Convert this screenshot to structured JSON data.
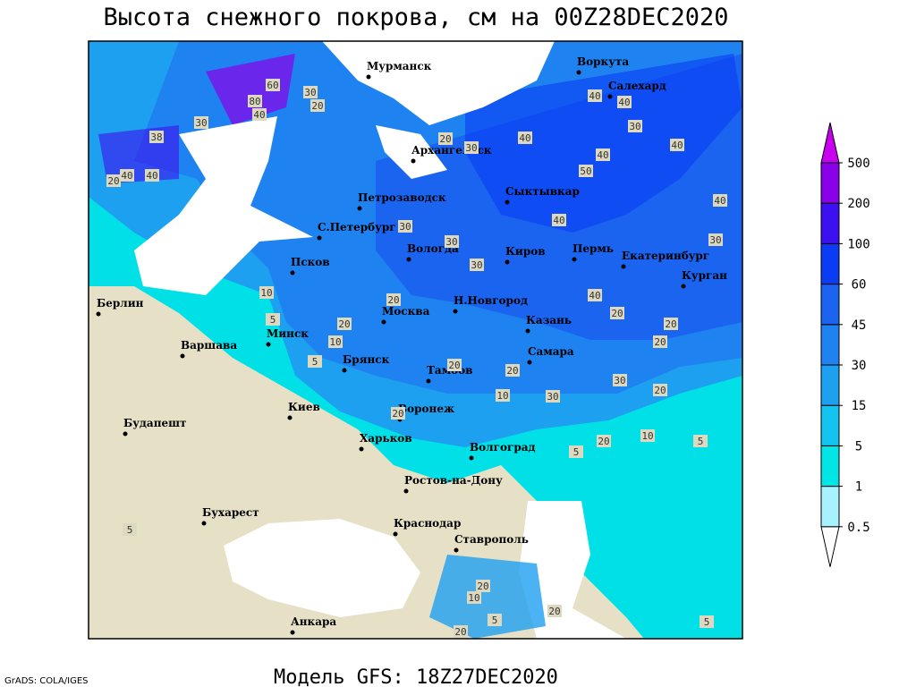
{
  "title": "Высота снежного покрова, см на 00Z28DEC2020",
  "footer": {
    "model": "Модель GFS: 18Z27DEC2020",
    "credit": "GrADS: COLA/IGES"
  },
  "cities": [
    "Мурманск",
    "Воркута",
    "Салехард",
    "Архангельск",
    "Петрозаводск",
    "Сыктывкар",
    "С.Петербург",
    "Вологда",
    "Киров",
    "Пермь",
    "Екатеринбург",
    "Курган",
    "Псков",
    "Берлин",
    "Н.Новгород",
    "Москва",
    "Казань",
    "Минск",
    "Варшава",
    "Самара",
    "Брянск",
    "Тамбов",
    "Киев",
    "Воронеж",
    "Будапешт",
    "Харьков",
    "Волгоград",
    "Ростов-на-Дону",
    "Бухарест",
    "Краснодар",
    "Ставрополь",
    "Анкара"
  ],
  "contour_labels": [
    "60",
    "80",
    "40",
    "30",
    "20",
    "30",
    "38",
    "20",
    "40",
    "40",
    "20",
    "30",
    "40",
    "40",
    "40",
    "30",
    "40",
    "40",
    "50",
    "40",
    "30",
    "30",
    "30",
    "30",
    "40",
    "10",
    "5",
    "20",
    "20",
    "10",
    "5",
    "40",
    "20",
    "20",
    "20",
    "30",
    "20",
    "20",
    "20",
    "10",
    "30",
    "20",
    "5",
    "20",
    "10",
    "5",
    "5",
    "20",
    "10",
    "5",
    "20",
    "20",
    "5"
  ],
  "legend": {
    "levels": [
      0.5,
      1,
      5,
      15,
      30,
      45,
      60,
      100,
      200,
      500
    ],
    "colors": [
      "#ffffff",
      "#a6f2ff",
      "#00e6e6",
      "#14c3f0",
      "#1ea0f0",
      "#1e82f0",
      "#1a64f0",
      "#0a3cf5",
      "#3c10f0",
      "#8a00e8",
      "#c800f0"
    ]
  }
}
